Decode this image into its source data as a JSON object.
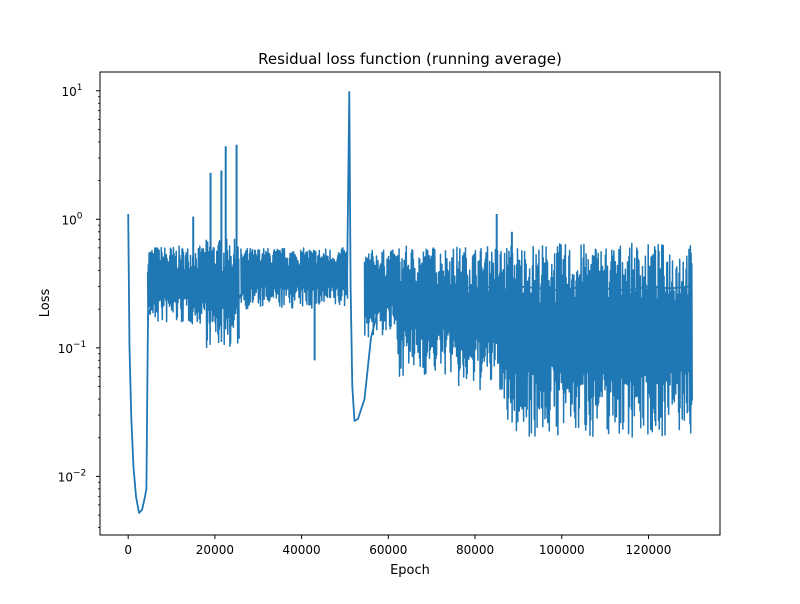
{
  "chart_data": {
    "type": "line",
    "title": "Residual loss function (running average)",
    "xlabel": "Epoch",
    "ylabel": "Loss",
    "xscale": "linear",
    "yscale": "log",
    "xlim": [
      -6500,
      136500
    ],
    "ylim": [
      0.0035,
      14
    ],
    "grid": false,
    "legend": "none",
    "xticks": [
      {
        "value": 0,
        "label": "0"
      },
      {
        "value": 20000,
        "label": "20000"
      },
      {
        "value": 40000,
        "label": "40000"
      },
      {
        "value": 60000,
        "label": "60000"
      },
      {
        "value": 80000,
        "label": "80000"
      },
      {
        "value": 100000,
        "label": "100000"
      },
      {
        "value": 120000,
        "label": "120000"
      }
    ],
    "yticks": [
      {
        "value": 0.01,
        "base": "10",
        "exp": "−2"
      },
      {
        "value": 0.1,
        "base": "10",
        "exp": "−1"
      },
      {
        "value": 1,
        "base": "10",
        "exp": "0"
      },
      {
        "value": 10,
        "base": "10",
        "exp": "1"
      }
    ],
    "colors": {
      "line": "#1f77b4",
      "axes": "#000000",
      "background": "#ffffff"
    },
    "series": [
      {
        "x": [
          0,
          300,
          700,
          1200,
          1800,
          2500,
          3200,
          3800,
          4200,
          4500,
          4600,
          5500,
          7000,
          9000,
          11000,
          13000,
          15000,
          17000,
          19000,
          20000,
          21000,
          22000,
          22500,
          23000,
          24000,
          25000,
          25500,
          26000,
          27000,
          30000,
          33000,
          36000,
          40000,
          43000,
          45000,
          47000,
          48000,
          50000,
          50500,
          51000,
          51300,
          51700,
          52200,
          53000,
          54500,
          56000,
          58000,
          60000,
          63000,
          66000,
          70000,
          75000,
          80000,
          85000,
          88000,
          90000,
          95000,
          100000,
          105000,
          110000,
          115000,
          120000,
          125000,
          130000
        ],
        "y": [
          1.1,
          0.1,
          0.03,
          0.012,
          0.007,
          0.0052,
          0.0055,
          0.0068,
          0.008,
          0.1,
          0.18,
          0.22,
          0.28,
          0.33,
          0.35,
          0.36,
          0.34,
          0.37,
          0.33,
          0.35,
          0.36,
          0.32,
          0.36,
          0.35,
          0.31,
          0.35,
          0.24,
          0.26,
          0.3,
          0.36,
          0.38,
          0.37,
          0.34,
          0.36,
          0.38,
          0.35,
          0.37,
          0.36,
          0.34,
          9.8,
          0.3,
          0.05,
          0.027,
          0.028,
          0.04,
          0.12,
          0.22,
          0.3,
          0.32,
          0.33,
          0.31,
          0.3,
          0.29,
          0.3,
          0.28,
          0.3,
          0.29,
          0.28,
          0.3,
          0.29,
          0.28,
          0.3,
          0.29,
          0.3
        ]
      }
    ],
    "oscillation_bands": [
      {
        "x": [
          4500,
          18000
        ],
        "low": 0.15,
        "high": 0.62
      },
      {
        "x": [
          18000,
          25500
        ],
        "low": 0.1,
        "high": 0.7
      },
      {
        "x": [
          26000,
          50500
        ],
        "low": 0.2,
        "high": 0.6
      },
      {
        "x": [
          54500,
          62000
        ],
        "low": 0.12,
        "high": 0.58
      },
      {
        "x": [
          62000,
          75000
        ],
        "low": 0.06,
        "high": 0.62
      },
      {
        "x": [
          75000,
          86000
        ],
        "low": 0.045,
        "high": 0.62
      },
      {
        "x": [
          86000,
          130000
        ],
        "low": 0.02,
        "high": 0.65
      }
    ],
    "spikes": [
      {
        "x": 15000,
        "y": 1.05
      },
      {
        "x": 19000,
        "y": 2.3
      },
      {
        "x": 21500,
        "y": 2.4
      },
      {
        "x": 22500,
        "y": 3.7
      },
      {
        "x": 25000,
        "y": 3.8
      },
      {
        "x": 43000,
        "y": 0.08
      },
      {
        "x": 85000,
        "y": 1.1
      },
      {
        "x": 88500,
        "y": 0.8
      }
    ]
  }
}
